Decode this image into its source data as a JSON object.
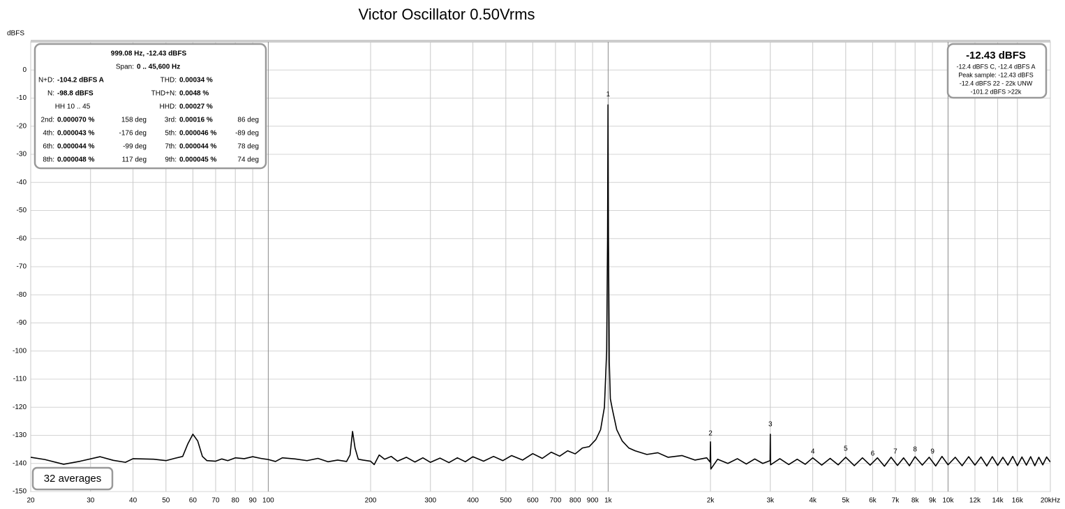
{
  "chart_data": {
    "type": "line",
    "title": "Victor Oscillator 0.50Vrms",
    "y_label": "dBFS",
    "log_x": true,
    "grid": true,
    "color": "#000000",
    "xlim": [
      20,
      20000
    ],
    "ylim": [
      -150,
      10
    ],
    "yticks": [
      0,
      -10,
      -20,
      -30,
      -40,
      -50,
      -60,
      -70,
      -80,
      -90,
      -100,
      -110,
      -120,
      -130,
      -140,
      -150
    ],
    "xticks": [
      20,
      30,
      40,
      50,
      60,
      70,
      80,
      90,
      100,
      200,
      300,
      400,
      500,
      600,
      700,
      800,
      900,
      {
        "value": 1000,
        "label": "1k"
      },
      {
        "value": 2000,
        "label": "2k"
      },
      {
        "value": 3000,
        "label": "3k"
      },
      {
        "value": 4000,
        "label": "4k"
      },
      {
        "value": 5000,
        "label": "5k"
      },
      {
        "value": 6000,
        "label": "6k"
      },
      {
        "value": 7000,
        "label": "7k"
      },
      {
        "value": 8000,
        "label": "8k"
      },
      {
        "value": 9000,
        "label": "9k"
      },
      {
        "value": 10000,
        "label": "10k"
      },
      {
        "value": 12000,
        "label": "12k"
      },
      {
        "value": 14000,
        "label": "14k"
      },
      {
        "value": 16000,
        "label": "16k"
      },
      {
        "value": 20000,
        "label": "20kHz"
      }
    ],
    "x": [
      20,
      22,
      25,
      28,
      32,
      35,
      38,
      40,
      43,
      46,
      50,
      53,
      56,
      58,
      60,
      62,
      64,
      66,
      70,
      73,
      76,
      80,
      85,
      90,
      95,
      100,
      105,
      110,
      120,
      130,
      140,
      150,
      160,
      170,
      174,
      177,
      180,
      184,
      190,
      200,
      205,
      212,
      220,
      230,
      240,
      255,
      270,
      285,
      300,
      320,
      340,
      360,
      380,
      400,
      430,
      460,
      490,
      520,
      560,
      600,
      640,
      680,
      720,
      760,
      800,
      840,
      880,
      920,
      950,
      975,
      990,
      996,
      999,
      1002,
      1008,
      1015,
      1030,
      1060,
      1100,
      1150,
      1200,
      1300,
      1400,
      1500,
      1650,
      1800,
      1950,
      1995,
      2000,
      2005,
      2100,
      2250,
      2400,
      2550,
      2700,
      2850,
      2995,
      3000,
      3005,
      3200,
      3400,
      3600,
      3800,
      4000,
      4250,
      4500,
      4750,
      5000,
      5300,
      5600,
      5900,
      6200,
      6500,
      6800,
      7100,
      7400,
      7700,
      8000,
      8400,
      8800,
      9200,
      9600,
      10000,
      10500,
      11000,
      11500,
      12000,
      12500,
      13000,
      13500,
      14000,
      14500,
      15000,
      15500,
      16000,
      16500,
      17000,
      17500,
      18000,
      18500,
      19000,
      19500,
      20000
    ],
    "values": [
      -137.8,
      -138.6,
      -140.3,
      -139.2,
      -137.6,
      -138.9,
      -139.6,
      -138.3,
      -138.4,
      -138.5,
      -139.0,
      -138.2,
      -137.5,
      -133.0,
      -129.6,
      -132.0,
      -137.5,
      -139.0,
      -139.2,
      -138.4,
      -139.0,
      -138.0,
      -138.3,
      -137.6,
      -138.2,
      -138.6,
      -139.3,
      -138.0,
      -138.4,
      -139.0,
      -138.2,
      -139.4,
      -138.8,
      -139.3,
      -137.0,
      -128.6,
      -134.5,
      -138.5,
      -138.8,
      -139.2,
      -140.4,
      -137.0,
      -138.5,
      -137.5,
      -139.2,
      -137.8,
      -139.5,
      -138.0,
      -139.6,
      -138.1,
      -139.7,
      -138.0,
      -139.4,
      -137.6,
      -139.2,
      -137.5,
      -139.0,
      -137.2,
      -138.8,
      -136.5,
      -138.2,
      -136.0,
      -137.4,
      -135.5,
      -136.6,
      -134.5,
      -134.0,
      -131.5,
      -128.0,
      -120.0,
      -100.0,
      -60.0,
      -12.4,
      -60.0,
      -104.0,
      -117.0,
      -121.0,
      -128.0,
      -132.0,
      -134.5,
      -135.5,
      -136.8,
      -136.2,
      -137.8,
      -137.2,
      -138.8,
      -138.0,
      -139.5,
      -132.3,
      -142.0,
      -138.5,
      -140.0,
      -138.3,
      -140.2,
      -138.4,
      -140.0,
      -139.0,
      -129.6,
      -140.5,
      -138.3,
      -140.4,
      -138.5,
      -140.3,
      -138.0,
      -140.6,
      -138.2,
      -140.5,
      -137.8,
      -140.8,
      -138.0,
      -140.6,
      -138.0,
      -141.0,
      -137.8,
      -140.7,
      -138.0,
      -140.8,
      -137.6,
      -140.6,
      -137.8,
      -140.9,
      -137.5,
      -140.5,
      -137.8,
      -140.8,
      -137.6,
      -140.6,
      -137.7,
      -140.9,
      -137.6,
      -140.7,
      -137.8,
      -140.6,
      -137.5,
      -140.8,
      -137.7,
      -140.6,
      -137.6,
      -140.8,
      -137.8,
      -140.5,
      -137.7,
      -139.5
    ],
    "harmonic_markers": [
      {
        "label": "1",
        "x": 1000,
        "y": -8.7
      },
      {
        "label": "2",
        "x": 2000,
        "y": -129.4
      },
      {
        "label": "3",
        "x": 3000,
        "y": -126.1
      },
      {
        "label": "4",
        "x": 4000,
        "y": -135.8
      },
      {
        "label": "5",
        "x": 5000,
        "y": -134.8
      },
      {
        "label": "6",
        "x": 6000,
        "y": -136.6
      },
      {
        "label": "7",
        "x": 7000,
        "y": -135.8
      },
      {
        "label": "8",
        "x": 8000,
        "y": -135.1
      },
      {
        "label": "9",
        "x": 9000,
        "y": -135.8
      }
    ],
    "info_box": {
      "header": "999.08 Hz, -12.43 dBFS",
      "span_label": "Span:",
      "span_value": "0 .. 45,600 Hz",
      "nd_label": "N+D:",
      "nd_value": "-104.2 dBFS A",
      "thd_label": "THD:",
      "thd_value": "0.00034 %",
      "n_label": "N:",
      "n_value": "-98.8 dBFS",
      "thdn_label": "THD+N:",
      "thdn_value": "0.0048 %",
      "hh_range": "HH 10 .. 45",
      "hhd_label": "HHD:",
      "hhd_value": "0.00027 %",
      "harmonics": [
        [
          "2nd:",
          "0.000070 %",
          "158 deg",
          "3rd:",
          "0.00016 %",
          "86 deg"
        ],
        [
          "4th:",
          "0.000043 %",
          "-176 deg",
          "5th:",
          "0.000046 %",
          "-89 deg"
        ],
        [
          "6th:",
          "0.000044 %",
          "-99 deg",
          "7th:",
          "0.000044 %",
          "78 deg"
        ],
        [
          "8th:",
          "0.000048 %",
          "117 deg",
          "9th:",
          "0.000045 %",
          "74 deg"
        ]
      ]
    },
    "level_box": {
      "main": "-12.43 dBFS",
      "lines": [
        "-12.4 dBFS C, -12.4 dBFS A",
        "Peak sample: -12.43 dBFS",
        "-12.4 dBFS 22 - 22k UNW",
        "-101.2 dBFS >22k"
      ]
    },
    "averages": "32 averages"
  }
}
